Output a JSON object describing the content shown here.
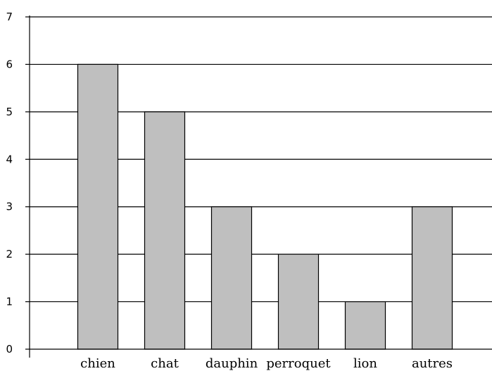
{
  "chart_data": {
    "type": "bar",
    "categories": [
      "chien",
      "chat",
      "dauphin",
      "perroquet",
      "lion",
      "autres"
    ],
    "values": [
      6,
      5,
      3,
      2,
      1,
      3
    ],
    "title": "",
    "xlabel": "",
    "ylabel": "",
    "ylim": [
      0,
      7
    ],
    "yticks": [
      "0",
      "1",
      "2",
      "3",
      "4",
      "5",
      "6",
      "7"
    ],
    "grid": true,
    "bar_color": "#bfbfbf",
    "bar_edge_color": "#000000",
    "grid_color": "#000000"
  }
}
